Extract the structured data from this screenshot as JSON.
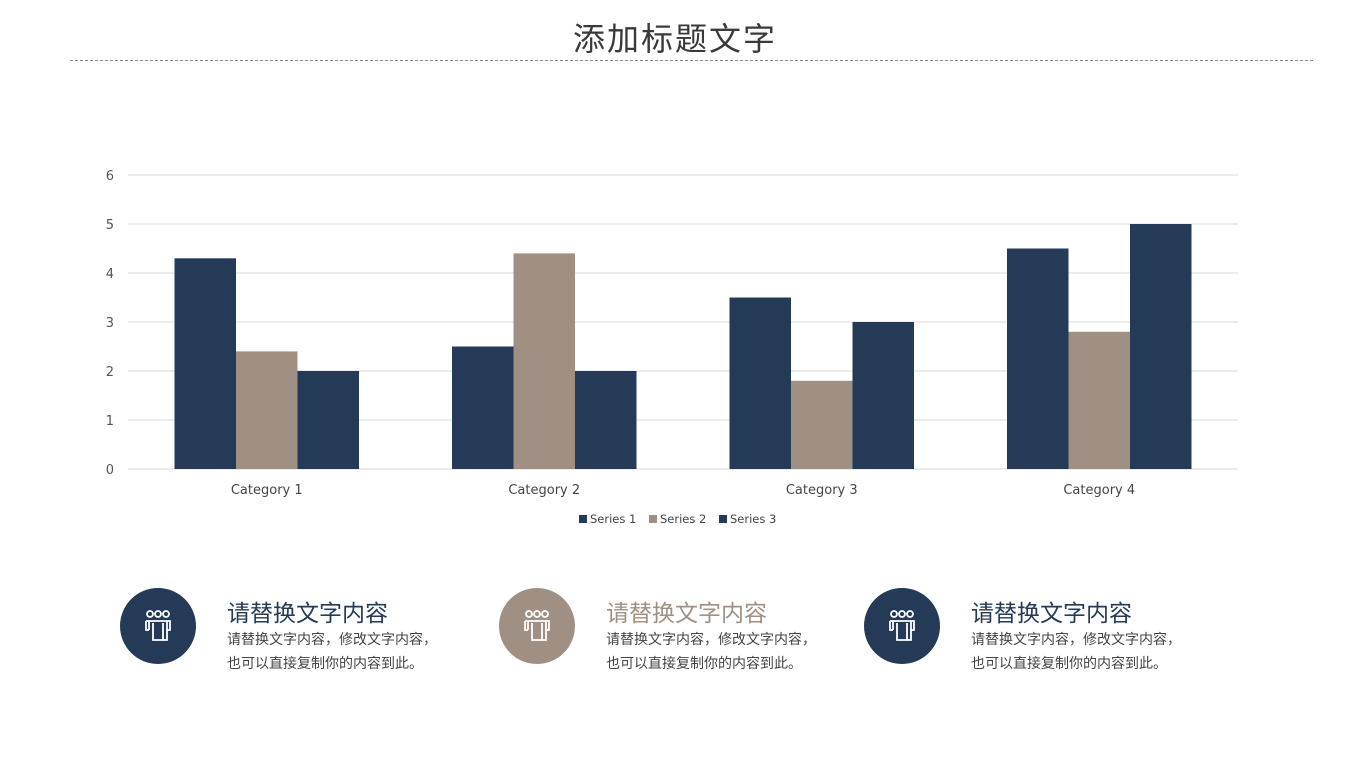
{
  "title": "添加标题文字",
  "colors": {
    "navy": "#243a56",
    "taupe": "#a09083"
  },
  "chart_data": {
    "type": "bar",
    "categories": [
      "Category 1",
      "Category 2",
      "Category 3",
      "Category 4"
    ],
    "series": [
      {
        "name": "Series 1",
        "values": [
          4.3,
          2.5,
          3.5,
          4.5
        ],
        "color": "#243a56"
      },
      {
        "name": "Series 2",
        "values": [
          2.4,
          4.4,
          1.8,
          2.8
        ],
        "color": "#a09083"
      },
      {
        "name": "Series 3",
        "values": [
          2,
          2,
          3,
          5
        ],
        "color": "#243a56"
      }
    ],
    "ylim": [
      0,
      6
    ],
    "yticks": [
      0,
      1,
      2,
      3,
      4,
      5,
      6
    ],
    "grid": true,
    "legend": "bottom"
  },
  "cards": [
    {
      "title": "请替换文字内容",
      "line1": "请替换文字内容，修改文字内容，",
      "line2": "也可以直接复制你的内容到此。",
      "color": "#243a56",
      "icon": "people-icon"
    },
    {
      "title": "请替换文字内容",
      "line1": "请替换文字内容，修改文字内容，",
      "line2": "也可以直接复制你的内容到此。",
      "color": "#a09083",
      "icon": "people-icon"
    },
    {
      "title": "请替换文字内容",
      "line1": "请替换文字内容，修改文字内容，",
      "line2": "也可以直接复制你的内容到此。",
      "color": "#243a56",
      "icon": "people-icon"
    }
  ]
}
